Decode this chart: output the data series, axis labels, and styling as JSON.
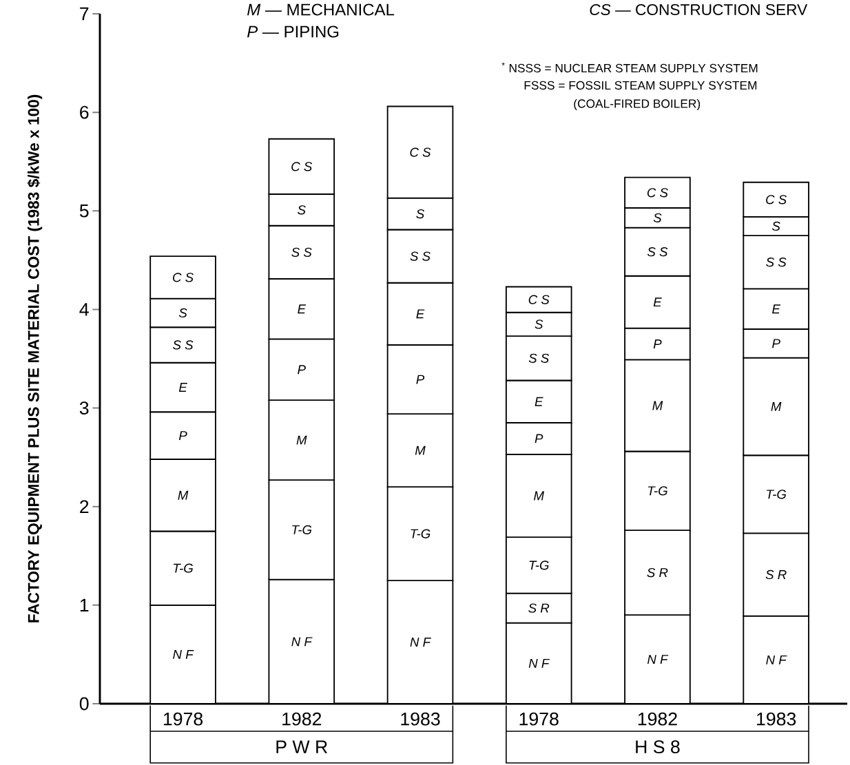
{
  "chart_data": {
    "type": "bar",
    "stacked": true,
    "ylabel": "FACTORY EQUIPMENT PLUS SITE MATERIAL COST (1983 $/kWe x 100)",
    "categories": [
      "1978",
      "1982",
      "1983",
      "1978",
      "1982",
      "1983"
    ],
    "series": [
      {
        "name": "N F",
        "color": "#ffffff",
        "values": [
          1.0,
          1.26,
          1.25,
          0.82,
          0.9,
          0.89
        ]
      },
      {
        "name": "S R",
        "color": "#ffffff",
        "values": [
          null,
          null,
          null,
          0.3,
          0.86,
          0.84
        ]
      },
      {
        "name": "T-G",
        "color": "#ffffff",
        "values": [
          0.75,
          1.01,
          0.95,
          0.57,
          0.8,
          0.79
        ]
      },
      {
        "name": "M",
        "color": "#ffffff",
        "values": [
          0.73,
          0.81,
          0.74,
          0.84,
          0.93,
          0.99
        ]
      },
      {
        "name": "P",
        "color": "#ffffff",
        "values": [
          0.48,
          0.62,
          0.7,
          0.32,
          0.32,
          0.29
        ]
      },
      {
        "name": "E",
        "color": "#ffffff",
        "values": [
          0.5,
          0.61,
          0.63,
          0.43,
          0.53,
          0.41
        ]
      },
      {
        "name": "S S",
        "color": "#ffffff",
        "values": [
          0.36,
          0.54,
          0.54,
          0.45,
          0.49,
          0.54
        ]
      },
      {
        "name": "S",
        "color": "#ffffff",
        "values": [
          0.29,
          0.32,
          0.32,
          0.24,
          0.2,
          0.19
        ]
      },
      {
        "name": "C S",
        "color": "#ffffff",
        "values": [
          0.43,
          0.56,
          0.93,
          0.26,
          0.31,
          0.35
        ]
      }
    ],
    "ylim": [
      0,
      7
    ],
    "yticks": [
      0,
      1,
      2,
      3,
      4,
      5,
      6,
      7
    ],
    "annotations": [
      "*M* — MECHANICAL",
      "*P* — PIPING",
      "*CS* — CONSTRUCTION SERV",
      "$^{*}$ NSSS = NUCLEAR STEAM SUPPLY SYSTEM",
      "FSSS = FOSSIL STEAM SUPPLY SYSTEM",
      "(COAL-FIRED BOILER)",
      "P W R",
      "H S 8"
    ]
  }
}
